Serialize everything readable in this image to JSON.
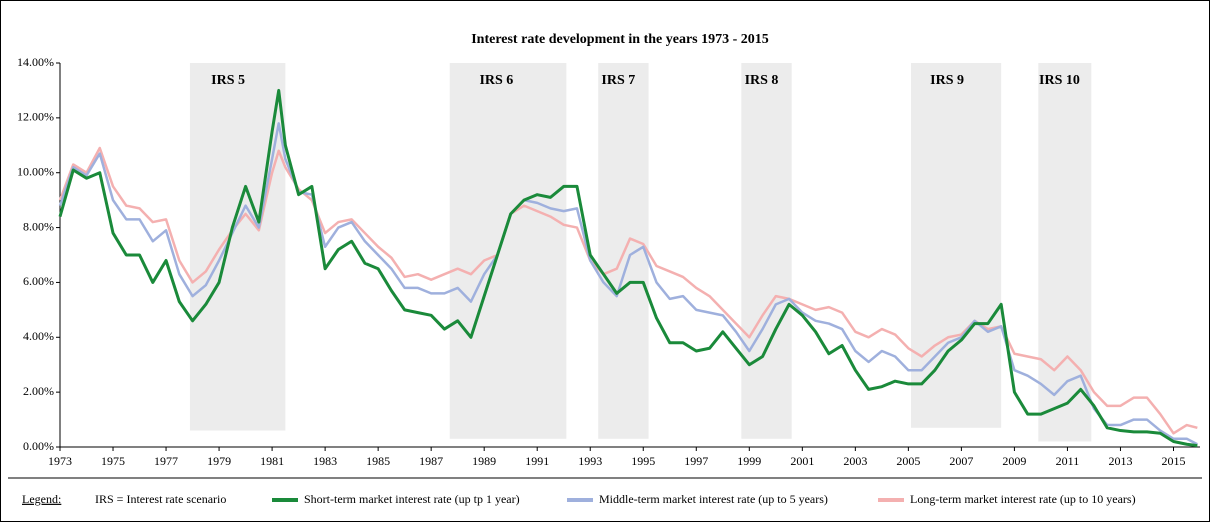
{
  "chart_data": {
    "type": "line",
    "title": "Interest rate development in the years 1973 - 2015",
    "x": [
      1973,
      1973.5,
      1974,
      1974.5,
      1975,
      1975.5,
      1976,
      1976.5,
      1977,
      1977.5,
      1978,
      1978.5,
      1979,
      1979.5,
      1980,
      1980.5,
      1981,
      1981.25,
      1981.5,
      1982,
      1982.5,
      1983,
      1983.5,
      1984,
      1984.5,
      1985,
      1985.5,
      1986,
      1986.5,
      1987,
      1987.5,
      1988,
      1988.5,
      1989,
      1989.5,
      1990,
      1990.5,
      1991,
      1991.5,
      1992,
      1992.5,
      1993,
      1993.5,
      1994,
      1994.5,
      1995,
      1995.5,
      1996,
      1996.5,
      1997,
      1997.5,
      1998,
      1998.5,
      1999,
      1999.5,
      2000,
      2000.5,
      2001,
      2001.5,
      2002,
      2002.5,
      2003,
      2003.5,
      2004,
      2004.5,
      2005,
      2005.5,
      2006,
      2006.5,
      2007,
      2007.5,
      2008,
      2008.5,
      2009,
      2009.5,
      2010,
      2010.5,
      2011,
      2011.5,
      2012,
      2012.5,
      2013,
      2013.5,
      2014,
      2014.5,
      2015,
      2015.5,
      2015.9
    ],
    "series": [
      {
        "name": "Long-term market interest rate (up to 10 years)",
        "color": "#f4b0b0",
        "width": 2.5,
        "values": [
          9.0,
          10.3,
          10.0,
          10.9,
          9.5,
          8.8,
          8.7,
          8.2,
          8.3,
          6.8,
          6.0,
          6.4,
          7.2,
          7.9,
          8.5,
          7.9,
          10.0,
          10.8,
          10.2,
          9.4,
          9.0,
          7.8,
          8.2,
          8.3,
          7.8,
          7.3,
          6.9,
          6.2,
          6.3,
          6.1,
          6.3,
          6.5,
          6.3,
          6.8,
          7.0,
          8.5,
          8.8,
          8.6,
          8.4,
          8.1,
          8.0,
          6.8,
          6.3,
          6.5,
          7.6,
          7.4,
          6.6,
          6.4,
          6.2,
          5.8,
          5.5,
          5.0,
          4.5,
          4.0,
          4.8,
          5.5,
          5.4,
          5.2,
          5.0,
          5.1,
          4.9,
          4.2,
          4.0,
          4.3,
          4.1,
          3.6,
          3.3,
          3.7,
          4.0,
          4.1,
          4.6,
          4.3,
          4.4,
          3.4,
          3.3,
          3.2,
          2.8,
          3.3,
          2.8,
          2.0,
          1.5,
          1.5,
          1.8,
          1.8,
          1.2,
          0.5,
          0.8,
          0.7
        ]
      },
      {
        "name": "Middle-term market interest rate (up to 5 years)",
        "color": "#9fb0dd",
        "width": 2.5,
        "values": [
          8.8,
          10.2,
          9.9,
          10.7,
          9.0,
          8.3,
          8.3,
          7.5,
          7.9,
          6.3,
          5.5,
          5.9,
          6.8,
          7.8,
          8.8,
          8.0,
          10.5,
          11.8,
          10.5,
          9.3,
          9.2,
          7.3,
          8.0,
          8.2,
          7.5,
          7.0,
          6.5,
          5.8,
          5.8,
          5.6,
          5.6,
          5.8,
          5.3,
          6.3,
          7.0,
          8.5,
          9.0,
          8.9,
          8.7,
          8.6,
          8.7,
          6.8,
          6.0,
          5.5,
          7.0,
          7.3,
          6.0,
          5.4,
          5.5,
          5.0,
          4.9,
          4.8,
          4.2,
          3.5,
          4.3,
          5.2,
          5.4,
          4.9,
          4.6,
          4.5,
          4.3,
          3.5,
          3.1,
          3.5,
          3.3,
          2.8,
          2.8,
          3.3,
          3.8,
          4.0,
          4.6,
          4.2,
          4.4,
          2.8,
          2.6,
          2.3,
          1.9,
          2.4,
          2.6,
          1.4,
          0.8,
          0.8,
          1.0,
          1.0,
          0.6,
          0.3,
          0.3,
          0.1
        ]
      },
      {
        "name": "Short-term market interest rate (up tp 1 year)",
        "color": "#1a8a3a",
        "width": 3,
        "values": [
          8.4,
          10.1,
          9.8,
          10.0,
          7.8,
          7.0,
          7.0,
          6.0,
          6.8,
          5.3,
          4.6,
          5.2,
          6.0,
          8.0,
          9.5,
          8.2,
          11.5,
          13.0,
          11.0,
          9.2,
          9.5,
          6.5,
          7.2,
          7.5,
          6.7,
          6.5,
          5.7,
          5.0,
          4.9,
          4.8,
          4.3,
          4.6,
          4.0,
          5.5,
          7.0,
          8.5,
          9.0,
          9.2,
          9.1,
          9.5,
          9.5,
          7.0,
          6.3,
          5.6,
          6.0,
          6.0,
          4.7,
          3.8,
          3.8,
          3.5,
          3.6,
          4.2,
          3.6,
          3.0,
          3.3,
          4.3,
          5.2,
          4.8,
          4.2,
          3.4,
          3.7,
          2.8,
          2.1,
          2.2,
          2.4,
          2.3,
          2.3,
          2.8,
          3.5,
          3.9,
          4.5,
          4.5,
          5.2,
          2.0,
          1.2,
          1.2,
          1.4,
          1.6,
          2.1,
          1.5,
          0.7,
          0.6,
          0.55,
          0.55,
          0.5,
          0.2,
          0.1,
          0.05
        ]
      }
    ],
    "xlim": [
      1973,
      2016
    ],
    "xticks": [
      1973,
      1975,
      1977,
      1979,
      1981,
      1983,
      1985,
      1987,
      1989,
      1991,
      1993,
      1995,
      1997,
      1999,
      2001,
      2003,
      2005,
      2007,
      2009,
      2011,
      2013,
      2015
    ],
    "ylim": [
      0,
      14
    ],
    "yticks": [
      {
        "value": 0,
        "label": "0.00%"
      },
      {
        "value": 2,
        "label": "2.00%"
      },
      {
        "value": 4,
        "label": "4.00%"
      },
      {
        "value": 6,
        "label": "6.00%"
      },
      {
        "value": 8,
        "label": "8.00%"
      },
      {
        "value": 10,
        "label": "10.00%"
      },
      {
        "value": 12,
        "label": "12.00%"
      },
      {
        "value": 14,
        "label": "14.00%"
      }
    ],
    "grid": false,
    "scenarios": [
      {
        "label": "IRS 5",
        "start": 1977.9,
        "end": 1981.5,
        "bottom": 0.6
      },
      {
        "label": "IRS 6",
        "start": 1987.7,
        "end": 1992.1,
        "bottom": 0.3
      },
      {
        "label": "IRS 7",
        "start": 1993.3,
        "end": 1995.2,
        "bottom": 0.3
      },
      {
        "label": "IRS 8",
        "start": 1998.7,
        "end": 2000.6,
        "bottom": 0.3
      },
      {
        "label": "IRS 9",
        "start": 2005.1,
        "end": 2008.5,
        "bottom": 0.7
      },
      {
        "label": "IRS 10",
        "start": 2009.9,
        "end": 2011.9,
        "bottom": 0.2
      }
    ],
    "legend_title": "Legend:",
    "legend_note": "IRS = Interest rate scenario"
  }
}
